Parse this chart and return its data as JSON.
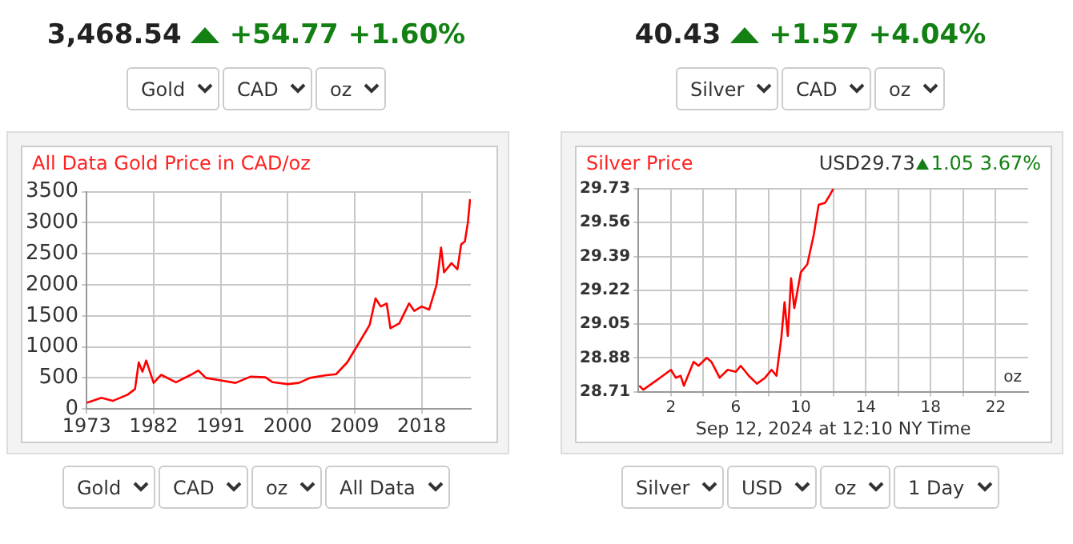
{
  "chart_data": [
    {
      "type": "line",
      "title": "All Data Gold Price in CAD/oz",
      "annotations": [
        "3,468.54",
        "+54.77",
        "+1.60%",
        "Gold",
        "CAD",
        "oz",
        "Gold",
        "CAD",
        "oz",
        "All Data"
      ],
      "x": [
        1973,
        1975,
        1976.5,
        1978.5,
        1979.5,
        1980,
        1980.5,
        1981,
        1982,
        1983,
        1985,
        1987,
        1988,
        1989,
        1991,
        1993,
        1995,
        1997,
        1998,
        2000,
        2001.5,
        2003,
        2005,
        2006.5,
        2008,
        2009,
        2010,
        2011,
        2011.8,
        2012.5,
        2013.3,
        2013.8,
        2015,
        2016.3,
        2017,
        2018,
        2019,
        2020,
        2020.6,
        2021,
        2022,
        2022.8,
        2023.3,
        2023.8,
        2024.2,
        2024.5
      ],
      "series": [
        {
          "color": "#ff0000",
          "values": [
            100,
            180,
            130,
            230,
            320,
            750,
            600,
            780,
            420,
            550,
            430,
            550,
            620,
            500,
            460,
            420,
            520,
            510,
            430,
            400,
            420,
            500,
            540,
            560,
            750,
            950,
            1150,
            1350,
            1780,
            1650,
            1700,
            1300,
            1380,
            1700,
            1580,
            1650,
            1600,
            2000,
            2600,
            2200,
            2350,
            2250,
            2650,
            2700,
            3000,
            3380
          ]
        }
      ],
      "xlim": [
        1973,
        2024.6
      ],
      "xticks": [
        1973,
        1982,
        1991,
        2000,
        2009,
        2018
      ],
      "ylim": [
        0,
        3500
      ],
      "yticks": [
        0,
        500,
        1000,
        1500,
        2000,
        2500,
        3000,
        3500
      ],
      "grid": true,
      "legend": false,
      "marker": "none",
      "line_style": "solid"
    },
    {
      "type": "line",
      "title": "Silver Price",
      "xlabel": "Sep 12, 2024 at 12:10 NY Time",
      "annotations": [
        "40.43",
        "+1.57",
        "+4.04%",
        "Silver",
        "CAD",
        "oz",
        "Silver",
        "USD",
        "oz",
        "1 Day",
        "USD29.73",
        "1.05",
        "3.67%",
        "oz"
      ],
      "x": [
        0.05,
        0.3,
        1,
        1.5,
        2,
        2.3,
        2.6,
        2.8,
        3,
        3.4,
        3.7,
        4.2,
        4.5,
        5,
        5.5,
        6,
        6.3,
        6.8,
        7.3,
        7.8,
        8.2,
        8.5,
        8.8,
        9,
        9.2,
        9.4,
        9.6,
        10,
        10.4,
        10.8,
        11.1,
        11.5,
        11.8,
        12
      ],
      "series": [
        {
          "color": "#ff0000",
          "values": [
            28.74,
            28.72,
            28.76,
            28.79,
            28.82,
            28.78,
            28.79,
            28.74,
            28.78,
            28.86,
            28.84,
            28.88,
            28.86,
            28.78,
            28.82,
            28.81,
            28.84,
            28.79,
            28.75,
            28.78,
            28.82,
            28.79,
            28.98,
            29.16,
            28.99,
            29.28,
            29.13,
            29.31,
            29.35,
            29.5,
            29.65,
            29.66,
            29.7,
            29.73
          ]
        }
      ],
      "xlim": [
        0,
        24
      ],
      "xticks": [
        {
          "value": 2,
          "label": "2"
        },
        {
          "value": 4,
          "label": null
        },
        {
          "value": 6,
          "label": "6"
        },
        {
          "value": 8,
          "label": null
        },
        {
          "value": 10,
          "label": "10"
        },
        {
          "value": 12,
          "label": null
        },
        {
          "value": 14,
          "label": "14"
        },
        {
          "value": 16,
          "label": null
        },
        {
          "value": 18,
          "label": "18"
        },
        {
          "value": 20,
          "label": null
        },
        {
          "value": 22,
          "label": "22"
        }
      ],
      "ylim": [
        28.71,
        29.73
      ],
      "yticks": [
        28.71,
        28.88,
        29.05,
        29.22,
        29.39,
        29.56,
        29.73
      ],
      "grid": true,
      "legend": false,
      "marker": "none",
      "line_style": "solid"
    }
  ]
}
